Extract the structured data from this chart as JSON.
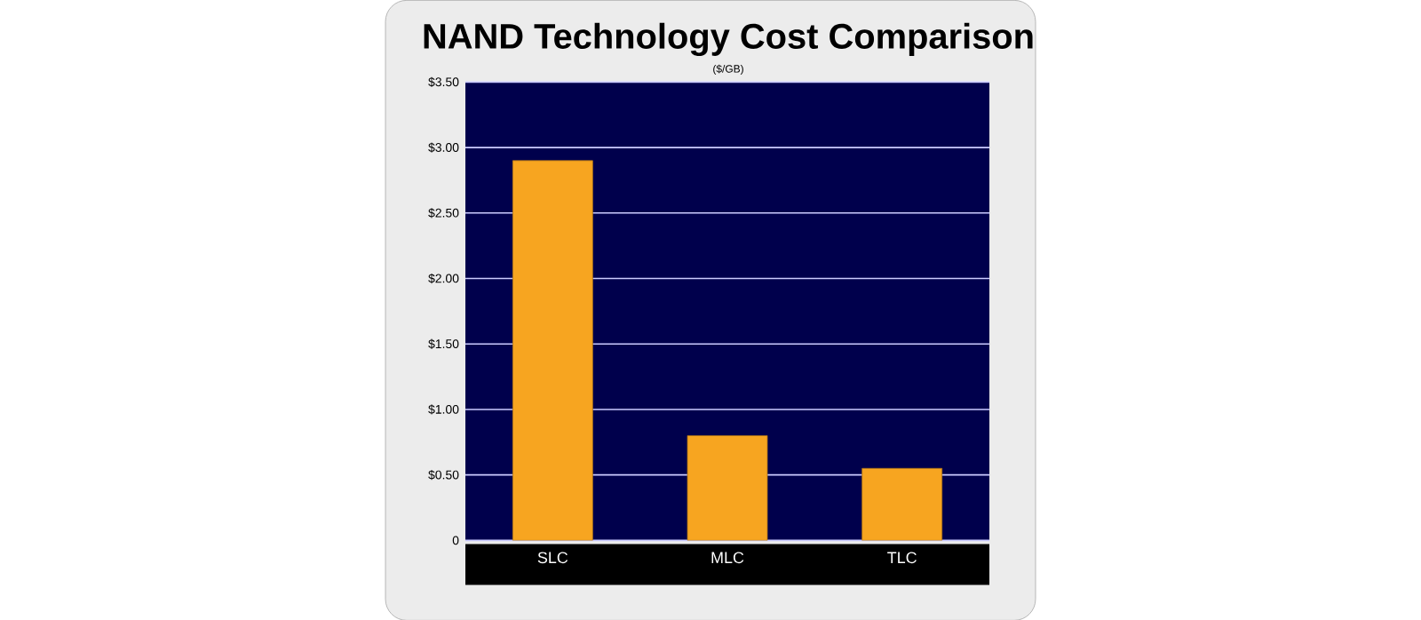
{
  "chart_data": {
    "type": "bar",
    "title": "NAND Technology Cost Comparison",
    "subtitle": "($/GB)",
    "categories": [
      "SLC",
      "MLC",
      "TLC"
    ],
    "values": [
      2.9,
      0.8,
      0.55
    ],
    "color": "#f7a520",
    "ylim": [
      0,
      3.5
    ],
    "yticks": [
      {
        "value": 0,
        "label": "0"
      },
      {
        "value": 0.5,
        "label": "$0.50"
      },
      {
        "value": 1,
        "label": "$1.00"
      },
      {
        "value": 1.5,
        "label": "$1.50"
      },
      {
        "value": 2,
        "label": "$2.00"
      },
      {
        "value": 2.5,
        "label": "$2.50"
      },
      {
        "value": 3,
        "label": "$3.00"
      },
      {
        "value": 3.5,
        "label": "$3.50"
      }
    ],
    "grid": "y"
  }
}
